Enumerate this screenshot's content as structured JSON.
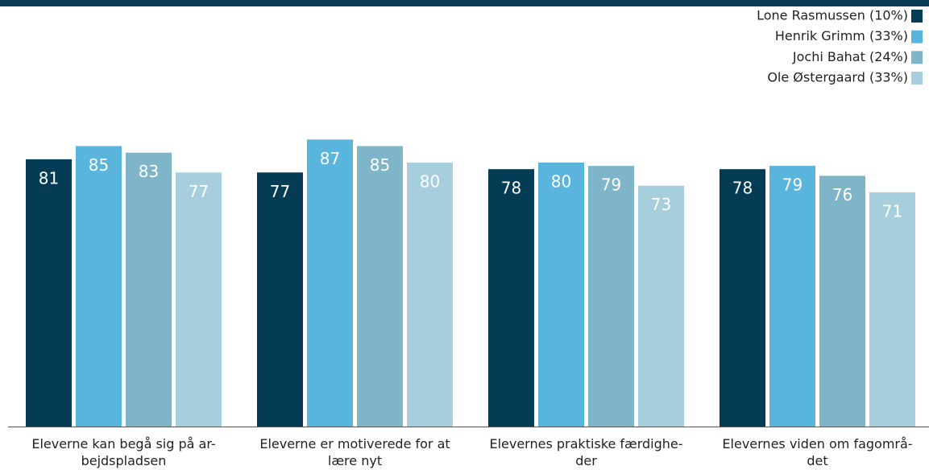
{
  "chart_data": {
    "type": "bar",
    "categories": [
      "Eleverne kan begå sig på ar-\nbejdspladsen",
      "Eleverne er motiverede for at\nlære nyt",
      "Elevernes praktiske færdighe-\nder",
      "Elevernes viden om fagområ-\ndet"
    ],
    "series": [
      {
        "name": "Lone Rasmussen (10%)",
        "color": "#033c54",
        "values": [
          81,
          77,
          78,
          78
        ]
      },
      {
        "name": "Henrik Grimm (33%)",
        "color": "#5ab5dc",
        "values": [
          85,
          87,
          80,
          79
        ]
      },
      {
        "name": "Jochi Bahat (24%)",
        "color": "#7fb5c9",
        "values": [
          83,
          85,
          79,
          76
        ]
      },
      {
        "name": "Ole Østergaard (33%)",
        "color": "#a6cedc",
        "values": [
          77,
          80,
          73,
          71
        ]
      }
    ],
    "ylim": [
      0,
      100
    ],
    "legend": "top-right"
  }
}
